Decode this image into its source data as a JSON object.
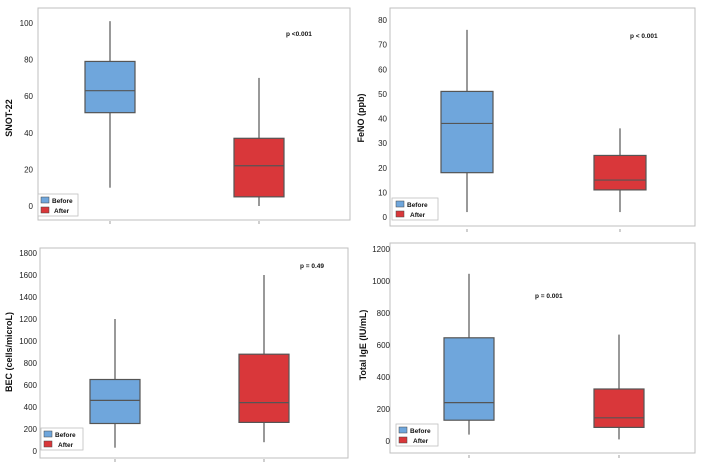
{
  "colors": {
    "before": "#6fa6dc",
    "after": "#d9373a",
    "border": "#bfbfbf",
    "stroke": "#555555"
  },
  "legend": {
    "before": "Before",
    "after": "After"
  },
  "chart_data": [
    {
      "type": "boxplot",
      "ylabel": "SNOT-22",
      "pvalue": "p <0.001",
      "ylim": [
        -2,
        103
      ],
      "yticks": [
        "0",
        "20",
        "40",
        "60",
        "80",
        "100"
      ],
      "ytick_values": [
        0,
        20,
        40,
        60,
        80,
        100
      ],
      "series": [
        {
          "name": "Before",
          "min": 10,
          "q1": 51,
          "median": 63,
          "q3": 79,
          "max": 101
        },
        {
          "name": "After",
          "min": 0,
          "q1": 5,
          "median": 22,
          "q3": 37,
          "max": 70
        }
      ]
    },
    {
      "type": "boxplot",
      "ylabel": "FeNO (ppb)",
      "pvalue": "p < 0.001",
      "ylim": [
        -1,
        82
      ],
      "yticks": [
        "0",
        "10",
        "20",
        "30",
        "40",
        "50",
        "60",
        "70",
        "80"
      ],
      "ytick_values": [
        0,
        10,
        20,
        30,
        40,
        50,
        60,
        70,
        80
      ],
      "series": [
        {
          "name": "Before",
          "min": 2,
          "q1": 18,
          "median": 38,
          "q3": 51,
          "max": 76
        },
        {
          "name": "After",
          "min": 2,
          "q1": 11,
          "median": 15,
          "q3": 25,
          "max": 36
        }
      ]
    },
    {
      "type": "boxplot",
      "ylabel": "BEC (cells/microL)",
      "pvalue": "p = 0.49",
      "ylim": [
        -20,
        1820
      ],
      "yticks": [
        "0",
        "200",
        "400",
        "600",
        "800",
        "1000",
        "1200",
        "1400",
        "1600",
        "1800"
      ],
      "ytick_values": [
        0,
        200,
        400,
        600,
        800,
        1000,
        1200,
        1400,
        1600,
        1800
      ],
      "series": [
        {
          "name": "Before",
          "min": 30,
          "q1": 250,
          "median": 460,
          "q3": 650,
          "max": 1200
        },
        {
          "name": "After",
          "min": 80,
          "q1": 260,
          "median": 440,
          "q3": 880,
          "max": 1600
        }
      ]
    },
    {
      "type": "boxplot",
      "ylabel": "Total IgE (IU/mL)",
      "pvalue": "p = 0.001",
      "ylim": [
        -10,
        1210
      ],
      "yticks": [
        "0",
        "200",
        "400",
        "600",
        "800",
        "1000",
        "1200"
      ],
      "ytick_values": [
        0,
        200,
        400,
        600,
        800,
        1000,
        1200
      ],
      "series": [
        {
          "name": "Before",
          "min": 40,
          "q1": 130,
          "median": 240,
          "q3": 645,
          "max": 1045
        },
        {
          "name": "After",
          "min": 10,
          "q1": 85,
          "median": 145,
          "q3": 325,
          "max": 665
        }
      ]
    }
  ]
}
